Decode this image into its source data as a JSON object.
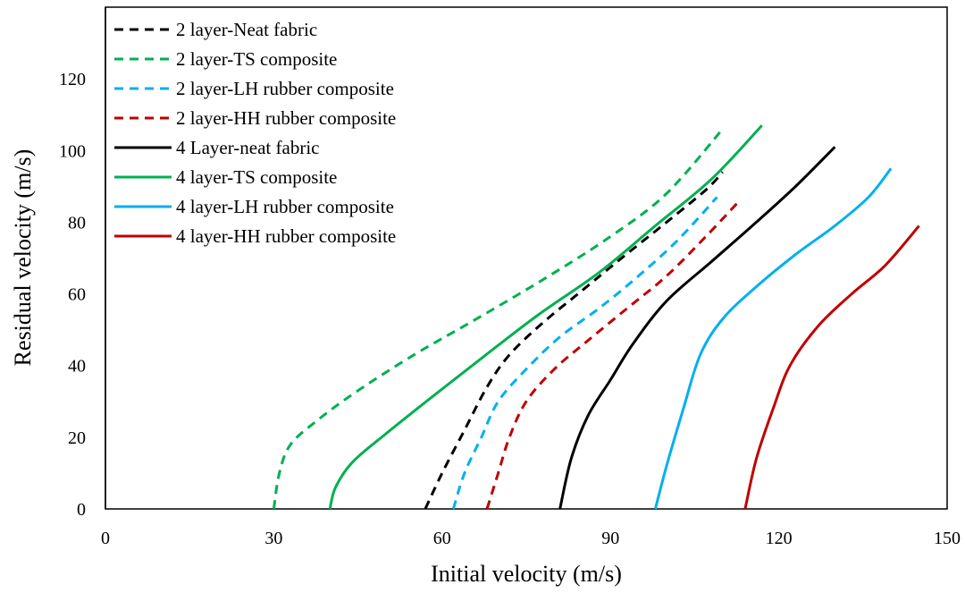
{
  "chart_data": {
    "type": "line",
    "title": "",
    "xlabel": "Initial velocity (m/s)",
    "ylabel": "Residual velocity (m/s)",
    "xlim": [
      0,
      150
    ],
    "ylim": [
      0,
      140
    ],
    "xticks": [
      0,
      30,
      60,
      90,
      120,
      150
    ],
    "yticks": [
      0,
      20,
      40,
      60,
      80,
      100,
      120
    ],
    "grid": false,
    "legend_position": "top-left",
    "series": [
      {
        "name": "2 layer-Neat fabric",
        "color": "#000000",
        "dash": true,
        "points": [
          [
            57,
            0
          ],
          [
            60,
            10
          ],
          [
            64,
            22
          ],
          [
            68,
            34
          ],
          [
            72,
            43
          ],
          [
            78,
            52
          ],
          [
            85,
            61
          ],
          [
            92,
            70
          ],
          [
            100,
            80
          ],
          [
            107,
            89
          ],
          [
            110,
            94
          ]
        ]
      },
      {
        "name": "2 layer-TS composite",
        "color": "#00b050",
        "dash": true,
        "points": [
          [
            30,
            0
          ],
          [
            31,
            10
          ],
          [
            33,
            18
          ],
          [
            38,
            25
          ],
          [
            45,
            33
          ],
          [
            55,
            43
          ],
          [
            65,
            52
          ],
          [
            78,
            64
          ],
          [
            90,
            76
          ],
          [
            100,
            88
          ],
          [
            110,
            106
          ]
        ]
      },
      {
        "name": "2 layer-LH rubber composite",
        "color": "#00b0f0",
        "dash": true,
        "points": [
          [
            62,
            0
          ],
          [
            64,
            10
          ],
          [
            67,
            20
          ],
          [
            70,
            30
          ],
          [
            75,
            39
          ],
          [
            81,
            48
          ],
          [
            88,
            56
          ],
          [
            95,
            65
          ],
          [
            102,
            75
          ],
          [
            109,
            87
          ]
        ]
      },
      {
        "name": "2 layer-HH rubber composite",
        "color": "#c00000",
        "dash": true,
        "points": [
          [
            68,
            0
          ],
          [
            70,
            10
          ],
          [
            72,
            20
          ],
          [
            75,
            30
          ],
          [
            80,
            39
          ],
          [
            86,
            47
          ],
          [
            93,
            56
          ],
          [
            100,
            65
          ],
          [
            107,
            76
          ],
          [
            113,
            86
          ]
        ]
      },
      {
        "name": "4 Layer-neat fabric",
        "color": "#000000",
        "dash": false,
        "points": [
          [
            81,
            0
          ],
          [
            83,
            14
          ],
          [
            86,
            26
          ],
          [
            90,
            36
          ],
          [
            94,
            46
          ],
          [
            100,
            58
          ],
          [
            108,
            69
          ],
          [
            116,
            80
          ],
          [
            123,
            90
          ],
          [
            130,
            101
          ]
        ]
      },
      {
        "name": "4 layer-TS composite",
        "color": "#00b050",
        "dash": false,
        "points": [
          [
            40,
            0
          ],
          [
            41,
            6
          ],
          [
            44,
            13
          ],
          [
            50,
            21
          ],
          [
            58,
            31
          ],
          [
            67,
            42
          ],
          [
            77,
            54
          ],
          [
            88,
            66
          ],
          [
            98,
            79
          ],
          [
            108,
            92
          ],
          [
            117,
            107
          ]
        ]
      },
      {
        "name": "4 layer-LH rubber composite",
        "color": "#00b0f0",
        "dash": false,
        "points": [
          [
            98,
            0
          ],
          [
            100,
            12
          ],
          [
            103,
            28
          ],
          [
            106,
            43
          ],
          [
            110,
            53
          ],
          [
            116,
            62
          ],
          [
            123,
            71
          ],
          [
            130,
            79
          ],
          [
            136,
            87
          ],
          [
            140,
            95
          ]
        ]
      },
      {
        "name": "4 layer-HH rubber composite",
        "color": "#c00000",
        "dash": false,
        "points": [
          [
            114,
            0
          ],
          [
            116,
            14
          ],
          [
            119,
            28
          ],
          [
            122,
            40
          ],
          [
            127,
            51
          ],
          [
            133,
            60
          ],
          [
            139,
            68
          ],
          [
            145,
            79
          ]
        ]
      }
    ]
  }
}
